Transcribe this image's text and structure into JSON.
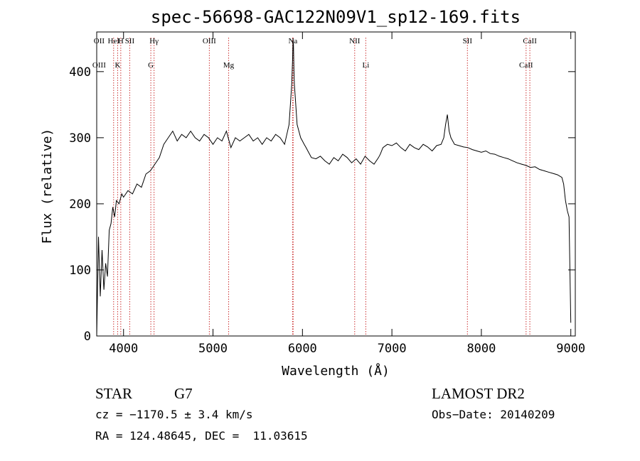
{
  "chart_data": {
    "type": "line",
    "title": "spec-56698-GAC122N09V1_sp12-169.fits",
    "xlabel": "Wavelength (Å)",
    "ylabel": "Flux (relative)",
    "xlim": [
      3700,
      9050
    ],
    "ylim": [
      0,
      460
    ],
    "x_ticks": [
      4000,
      5000,
      6000,
      7000,
      8000,
      9000
    ],
    "y_ticks": [
      0,
      100,
      200,
      300,
      400
    ],
    "series": [
      {
        "x": [
          3700,
          3720,
          3740,
          3760,
          3780,
          3800,
          3820,
          3840,
          3860,
          3880,
          3900,
          3920,
          3950,
          3980,
          4000,
          4050,
          4100,
          4150,
          4200,
          4250,
          4300,
          4350,
          4400,
          4450,
          4500,
          4550,
          4600,
          4650,
          4700,
          4750,
          4800,
          4850,
          4900,
          4950,
          5000,
          5050,
          5100,
          5150,
          5200,
          5250,
          5300,
          5350,
          5400,
          5450,
          5500,
          5550,
          5600,
          5650,
          5700,
          5750,
          5800,
          5850,
          5880,
          5890,
          5895,
          5900,
          5905,
          5910,
          5920,
          5940,
          5960,
          5980,
          6000,
          6020,
          6040,
          6060,
          6080,
          6100,
          6150,
          6200,
          6250,
          6300,
          6350,
          6400,
          6450,
          6500,
          6550,
          6600,
          6650,
          6700,
          6750,
          6800,
          6850,
          6870,
          6900,
          6950,
          7000,
          7050,
          7100,
          7150,
          7200,
          7250,
          7300,
          7350,
          7400,
          7450,
          7500,
          7550,
          7580,
          7600,
          7620,
          7640,
          7660,
          7700,
          7750,
          7800,
          7850,
          7900,
          7950,
          8000,
          8050,
          8100,
          8150,
          8200,
          8250,
          8300,
          8350,
          8400,
          8450,
          8500,
          8550,
          8600,
          8650,
          8700,
          8750,
          8800,
          8850,
          8900,
          8920,
          8940,
          8960,
          8980,
          9000
        ],
        "values": [
          0,
          150,
          60,
          130,
          70,
          110,
          90,
          160,
          170,
          195,
          180,
          205,
          200,
          215,
          210,
          220,
          215,
          230,
          225,
          245,
          250,
          260,
          270,
          290,
          300,
          310,
          295,
          305,
          300,
          310,
          300,
          295,
          305,
          300,
          290,
          300,
          295,
          310,
          285,
          300,
          295,
          300,
          305,
          295,
          300,
          290,
          300,
          295,
          305,
          300,
          290,
          320,
          380,
          420,
          450,
          440,
          400,
          380,
          360,
          320,
          310,
          300,
          295,
          290,
          285,
          280,
          275,
          270,
          268,
          272,
          265,
          260,
          270,
          265,
          275,
          270,
          262,
          268,
          260,
          272,
          265,
          260,
          270,
          275,
          285,
          290,
          288,
          292,
          285,
          280,
          290,
          285,
          282,
          290,
          286,
          280,
          288,
          290,
          300,
          320,
          335,
          310,
          300,
          290,
          288,
          286,
          285,
          282,
          280,
          278,
          280,
          276,
          275,
          272,
          270,
          268,
          265,
          262,
          260,
          258,
          255,
          256,
          252,
          250,
          248,
          246,
          244,
          240,
          230,
          205,
          190,
          180,
          20
        ]
      }
    ],
    "line_labels_upper": [
      {
        "label": "HeI",
        "x": 3889
      },
      {
        "label": "SII",
        "x": 4069
      },
      {
        "label": "OII",
        "x": 3727
      },
      {
        "label": "H",
        "x": 3969
      },
      {
        "label": "Hγ",
        "x": 4341
      },
      {
        "label": "OIII",
        "x": 4959
      },
      {
        "label": "Na",
        "x": 5893
      },
      {
        "label": "NII",
        "x": 6584
      },
      {
        "label": "SII",
        "x": 7844
      },
      {
        "label": "CaII",
        "x": 8542
      }
    ],
    "line_labels_lower": [
      {
        "label": "OIII",
        "x": 3727
      },
      {
        "label": "K",
        "x": 3934
      },
      {
        "label": "G",
        "x": 4305
      },
      {
        "label": "Mg",
        "x": 5175
      },
      {
        "label": "Li",
        "x": 6708
      },
      {
        "label": "CaII",
        "x": 8500
      }
    ],
    "line_marker_positions": [
      3889,
      3934,
      3969,
      4069,
      4305,
      4341,
      4959,
      5175,
      5890,
      5896,
      6584,
      6708,
      7844,
      8500,
      8542
    ]
  },
  "info": {
    "object_class": "STAR",
    "subclass": "G7",
    "survey": "LAMOST DR2",
    "velocity": "cz = −1170.5 ± 3.4 km/s",
    "obs_date": "Obs−Date: 20140209",
    "coords": "RA = 124.48645, DEC =  11.03615"
  },
  "colors": {
    "spectrum": "#000000",
    "marker_lines": "#cc3333",
    "axes": "#000000"
  }
}
